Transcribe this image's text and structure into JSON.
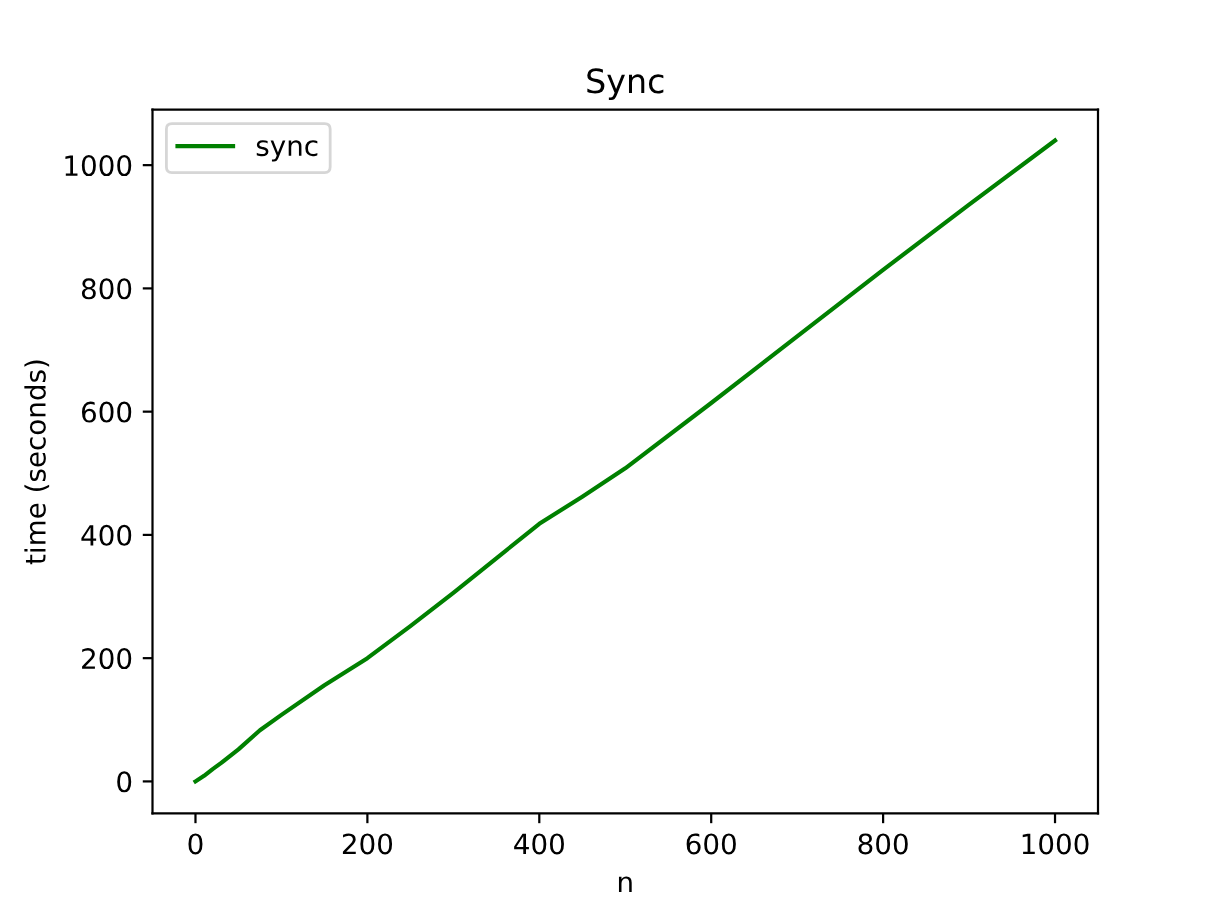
{
  "chart_data": {
    "type": "line",
    "title": "Sync",
    "xlabel": "n",
    "ylabel": "time (seconds)",
    "x": [
      0,
      10,
      20,
      30,
      50,
      75,
      100,
      150,
      200,
      250,
      300,
      350,
      400,
      450,
      500,
      600,
      700,
      800,
      900,
      1000
    ],
    "series": [
      {
        "name": "sync",
        "color": "#008000",
        "values": [
          0,
          9,
          20,
          30,
          52,
          83,
          108,
          156,
          200,
          252,
          306,
          362,
          418,
          462,
          508,
          614,
          722,
          830,
          936,
          1040
        ]
      }
    ],
    "xlim": [
      -50,
      1050
    ],
    "ylim": [
      -52,
      1090
    ],
    "xticks": [
      0,
      200,
      400,
      600,
      800,
      1000
    ],
    "yticks": [
      0,
      200,
      400,
      600,
      800,
      1000
    ],
    "grid": false,
    "legend": "top left",
    "marker": "none",
    "line_style": "solid"
  }
}
